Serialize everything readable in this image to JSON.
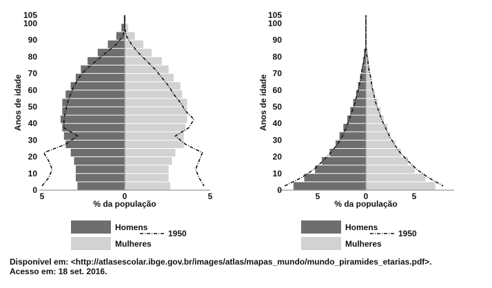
{
  "chart_data": [
    {
      "type": "bar",
      "orientation": "horizontal-population-pyramid",
      "ylabel": "Anos de idade",
      "xlabel": "% da população",
      "y_ticks": [
        "0",
        "10",
        "20",
        "30",
        "40",
        "50",
        "60",
        "70",
        "80",
        "90",
        "100",
        "105"
      ],
      "x_ticks": [
        "5",
        "0",
        "5"
      ],
      "xlim": [
        -5,
        5
      ],
      "age_groups": [
        "0-4",
        "5-9",
        "10-14",
        "15-19",
        "20-24",
        "25-29",
        "30-34",
        "35-39",
        "40-44",
        "45-49",
        "50-54",
        "55-59",
        "60-64",
        "65-69",
        "70-74",
        "75-79",
        "80-84",
        "85-89",
        "90-94",
        "95-99",
        "100+"
      ],
      "series": [
        {
          "name": "Homens",
          "side": "left",
          "values": [
            2.8,
            2.9,
            2.9,
            3.0,
            3.2,
            3.5,
            3.6,
            3.7,
            3.8,
            3.7,
            3.7,
            3.5,
            3.2,
            2.9,
            2.6,
            2.2,
            1.6,
            1.0,
            0.5,
            0.2,
            0.05
          ]
        },
        {
          "name": "Mulheres",
          "side": "right",
          "values": [
            2.7,
            2.6,
            2.6,
            2.8,
            3.0,
            3.5,
            3.5,
            3.6,
            3.7,
            3.7,
            3.7,
            3.4,
            3.3,
            2.9,
            2.6,
            2.2,
            1.6,
            1.1,
            0.6,
            0.2,
            0.05
          ]
        },
        {
          "name": "1950",
          "type": "line",
          "men": [
            4.9,
            4.5,
            4.3,
            4.5,
            4.8,
            3.5,
            2.8,
            3.6,
            3.6,
            3.5,
            3.4,
            3.2,
            3.0,
            2.7,
            2.3,
            1.7,
            1.1,
            0.5,
            0.1,
            0.0,
            0.0
          ],
          "women": [
            4.7,
            4.4,
            4.2,
            4.4,
            4.6,
            3.6,
            3.0,
            3.8,
            4.1,
            3.6,
            3.3,
            2.9,
            2.6,
            2.2,
            1.8,
            1.3,
            0.8,
            0.4,
            0.1,
            0.0,
            0.0
          ]
        }
      ]
    },
    {
      "type": "bar",
      "orientation": "horizontal-population-pyramid",
      "ylabel": "Anos de idade",
      "xlabel": "% da população",
      "y_ticks": [
        "0",
        "10",
        "20",
        "30",
        "40",
        "50",
        "60",
        "70",
        "80",
        "90",
        "100",
        "105"
      ],
      "x_ticks": [
        "5",
        "0",
        "5"
      ],
      "xlim": [
        -9,
        9
      ],
      "age_groups": [
        "0-4",
        "5-9",
        "10-14",
        "15-19",
        "20-24",
        "25-29",
        "30-34",
        "35-39",
        "40-44",
        "45-49",
        "50-54",
        "55-59",
        "60-64",
        "65-69",
        "70-74",
        "75-79",
        "80-84",
        "85-89",
        "90-94",
        "95-99",
        "100+"
      ],
      "series": [
        {
          "name": "Homens",
          "side": "left",
          "values": [
            7.4,
            6.3,
            5.2,
            4.5,
            3.7,
            3.1,
            2.7,
            2.3,
            1.9,
            1.6,
            1.3,
            1.0,
            0.8,
            0.6,
            0.4,
            0.3,
            0.2,
            0,
            0,
            0,
            0
          ]
        },
        {
          "name": "Mulheres",
          "side": "right",
          "values": [
            7.1,
            6.1,
            5.0,
            4.3,
            3.6,
            3.0,
            2.5,
            2.2,
            1.8,
            1.5,
            1.2,
            0.9,
            0.7,
            0.5,
            0.4,
            0.3,
            0.2,
            0,
            0,
            0,
            0
          ]
        },
        {
          "name": "1950",
          "type": "line",
          "men": [
            8.3,
            6.6,
            5.3,
            4.4,
            3.6,
            2.9,
            2.4,
            2.0,
            1.7,
            1.4,
            1.1,
            0.9,
            0.7,
            0.5,
            0.4,
            0.2,
            0.05,
            0,
            0,
            0,
            0
          ],
          "women": [
            7.9,
            6.4,
            5.2,
            4.3,
            3.5,
            2.9,
            2.4,
            2.0,
            1.6,
            1.3,
            1.0,
            0.8,
            0.6,
            0.5,
            0.3,
            0.2,
            0.05,
            0,
            0,
            0,
            0
          ]
        }
      ]
    }
  ],
  "legend": {
    "men_label": "Homens",
    "women_label": "Mulheres",
    "line_label": "1950"
  },
  "colors": {
    "men": "#6e6e6e",
    "women": "#d2d2d2",
    "line": "#111111",
    "axis": "#999999"
  },
  "source": {
    "line1": "Disponível em: <http://atlasescolar.ibge.gov.br/images/atlas/mapas_mundo/mundo_piramides_etarias.pdf>.",
    "line2": "Acesso em: 18 set. 2016."
  }
}
